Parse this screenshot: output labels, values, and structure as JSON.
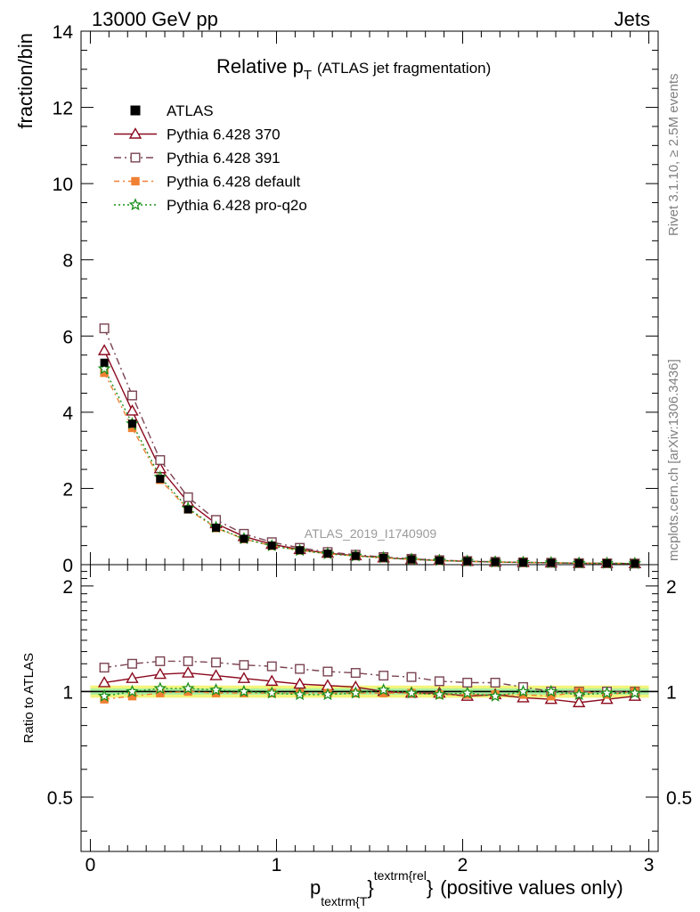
{
  "header": {
    "left": "13000 GeV pp",
    "right": "Jets"
  },
  "side_labels": {
    "top": "Rivet 3.1.10, ≥ 2.5M events",
    "bottom": "mcplots.cern.ch [arXiv:1306.3436]"
  },
  "watermark": "ATLAS_2019_I1740909",
  "chart_data": {
    "type": "line",
    "title": {
      "main": "Relative p",
      "sub": "T",
      "paren": "(ATLAS jet fragmentation)"
    },
    "xlabel": {
      "p": "p",
      "sub": "textrm{T",
      "sup": "textrm{rel",
      "brace1": "}",
      "brace2": "}",
      "rest": "(positive values only)"
    },
    "ylabel": "fraction/bin",
    "ratio_ylabel": "Ratio to ATLAS",
    "xlim": [
      -0.05,
      3.05
    ],
    "ylim": [
      0,
      14
    ],
    "ratio_ylim": [
      0.35,
      2.3
    ],
    "x_ticks": [
      "0",
      "1",
      "2",
      "3"
    ],
    "y_ticks": [
      "0",
      "2",
      "4",
      "6",
      "8",
      "10",
      "12",
      "14"
    ],
    "ratio_ticks": [
      "0.5",
      "1",
      "2"
    ],
    "x": [
      0.075,
      0.225,
      0.375,
      0.525,
      0.675,
      0.825,
      0.975,
      1.125,
      1.275,
      1.425,
      1.575,
      1.725,
      1.875,
      2.025,
      2.175,
      2.325,
      2.475,
      2.625,
      2.775,
      2.925
    ],
    "data": {
      "name": "ATLAS",
      "values": [
        5.3,
        3.7,
        2.25,
        1.45,
        0.97,
        0.68,
        0.5,
        0.38,
        0.29,
        0.23,
        0.18,
        0.14,
        0.11,
        0.09,
        0.07,
        0.06,
        0.05,
        0.04,
        0.035,
        0.03
      ],
      "band_inner": 0.02,
      "band_outer": 0.04
    },
    "series": [
      {
        "name": "Pythia 6.428 370",
        "color": "#8b0a1e",
        "marker": "triangle-open",
        "dash": "",
        "ratio": [
          1.06,
          1.09,
          1.12,
          1.13,
          1.11,
          1.09,
          1.07,
          1.05,
          1.04,
          1.03,
          1.0,
          0.99,
          0.99,
          0.97,
          0.98,
          0.96,
          0.95,
          0.93,
          0.95,
          0.97
        ]
      },
      {
        "name": "Pythia 6.428 391",
        "color": "#7a4452",
        "marker": "square-open",
        "dash": "8,4,2,4",
        "ratio": [
          1.17,
          1.2,
          1.22,
          1.22,
          1.21,
          1.19,
          1.18,
          1.16,
          1.14,
          1.13,
          1.11,
          1.1,
          1.07,
          1.06,
          1.06,
          1.03,
          1.0,
          1.0,
          1.0,
          1.0
        ]
      },
      {
        "name": "Pythia 6.428 default",
        "color": "#f08032",
        "marker": "square-filled",
        "dash": "6,4,2,4",
        "ratio": [
          0.95,
          0.97,
          0.99,
          1.0,
          0.99,
          0.99,
          0.99,
          0.99,
          0.99,
          0.99,
          0.99,
          0.99,
          0.98,
          0.98,
          0.98,
          0.98,
          0.97,
          1.0,
          0.98,
          1.0
        ]
      },
      {
        "name": "Pythia 6.428 pro-q2o",
        "color": "#1a8f1a",
        "marker": "star-open",
        "dash": "2,3",
        "ratio": [
          0.97,
          1.0,
          1.02,
          1.02,
          1.01,
          1.0,
          0.99,
          0.98,
          0.98,
          0.99,
          1.01,
          0.99,
          0.98,
          0.99,
          0.97,
          1.0,
          1.0,
          0.98,
          0.99,
          0.99
        ]
      }
    ],
    "legend_position": "top-left",
    "grid": false
  }
}
